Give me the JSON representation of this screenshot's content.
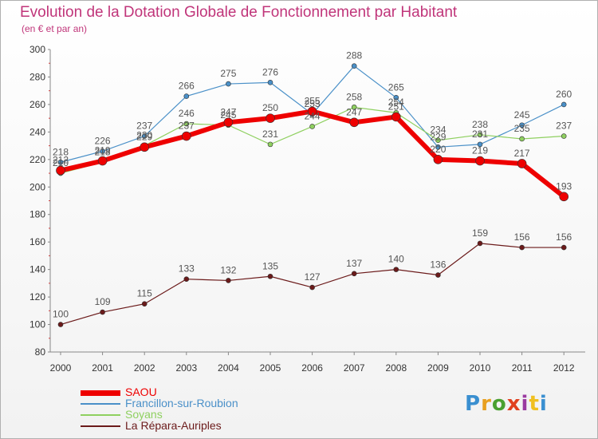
{
  "header": {
    "title": "Evolution de la Dotation Globale de Fonctionnement par Habitant",
    "subtitle": "(en € et par an)"
  },
  "chart_data": {
    "type": "line",
    "title": "Evolution de la Dotation Globale de Fonctionnement par Habitant",
    "subtitle": "(en € et par an)",
    "xlabel": "",
    "ylabel": "",
    "ylim": [
      80,
      300
    ],
    "yticks": [
      80,
      100,
      120,
      140,
      160,
      180,
      200,
      220,
      240,
      260,
      280,
      300
    ],
    "x": [
      "2000",
      "2001",
      "2002",
      "2003",
      "2004",
      "2005",
      "2006",
      "2007",
      "2008",
      "2009",
      "2010",
      "2011",
      "2012"
    ],
    "grid": false,
    "legend": "bottom-left",
    "series": [
      {
        "name": "Francillon-sur-Roubion",
        "color": "#4a90c8",
        "width": 1.2,
        "values": [
          218,
          226,
          237,
          266,
          275,
          276,
          253,
          288,
          265,
          229,
          231,
          245,
          260
        ]
      },
      {
        "name": "Soyans",
        "color": "#8fd060",
        "width": 1.2,
        "values": [
          210,
          218,
          230,
          246,
          245,
          231,
          244,
          258,
          254,
          234,
          238,
          235,
          237
        ]
      },
      {
        "name": "La Répara-Auriples",
        "color": "#6b1a1a",
        "width": 1.2,
        "values": [
          100,
          109,
          115,
          133,
          132,
          135,
          127,
          137,
          140,
          136,
          159,
          156,
          156
        ]
      },
      {
        "name": "SAOU",
        "color": "#ee0000",
        "width": 6,
        "values": [
          212,
          219,
          229,
          237,
          247,
          250,
          255,
          247,
          251,
          220,
          219,
          217,
          193
        ]
      }
    ]
  },
  "legend": {
    "items": [
      {
        "label": "SAOU",
        "color": "#ee0000",
        "width": 7
      },
      {
        "label": "Francillon-sur-Roubion",
        "color": "#4a90c8",
        "width": 2
      },
      {
        "label": "Soyans",
        "color": "#8fd060",
        "width": 2
      },
      {
        "label": "La Répara-Auriples",
        "color": "#6b1a1a",
        "width": 2
      }
    ]
  },
  "logo": {
    "letters": [
      "P",
      "r",
      "o",
      "x",
      "i",
      "t",
      "i"
    ],
    "colors": [
      "#3a8fd0",
      "#e8a020",
      "#4aa030",
      "#e04020",
      "#9a3aa0",
      "#f0c020",
      "#3a8fd0"
    ]
  }
}
